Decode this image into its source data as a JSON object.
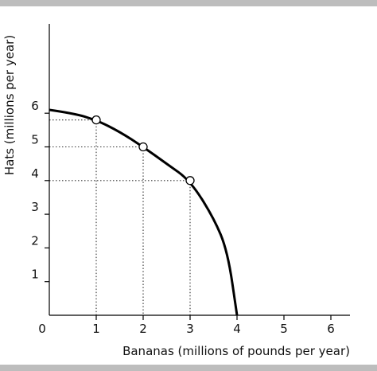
{
  "chart_data": {
    "type": "line",
    "xlabel": "Bananas (millions of pounds per year)",
    "ylabel": "Hats (millions per year)",
    "xlim": [
      0,
      6.5
    ],
    "ylim": [
      0,
      7.5
    ],
    "x_ticks": [
      0,
      1,
      2,
      3,
      4,
      5,
      6
    ],
    "y_ticks": [
      1,
      2,
      3,
      4,
      5,
      6
    ],
    "x_tick_labels": [
      "0",
      "1",
      "2",
      "3",
      "4",
      "5",
      "6"
    ],
    "y_tick_labels": [
      "1",
      "2",
      "3",
      "4",
      "5",
      "6"
    ],
    "grid": false,
    "series": [
      {
        "curve": "production possibilities frontier",
        "x": [
          0,
          0.5,
          1,
          1.5,
          2,
          2.5,
          3,
          3.5,
          3.8,
          4
        ],
        "y": [
          6.1,
          6.0,
          5.8,
          5.45,
          5.0,
          4.5,
          4.0,
          2.9,
          1.9,
          0
        ]
      }
    ],
    "points": [
      {
        "x": 1,
        "y": 5.8
      },
      {
        "x": 2,
        "y": 5.0
      },
      {
        "x": 3,
        "y": 4.0
      }
    ],
    "colors": {
      "curve": "#000000",
      "axis": "#000000",
      "guide": "#333333",
      "band": "#bdbdbd"
    }
  }
}
